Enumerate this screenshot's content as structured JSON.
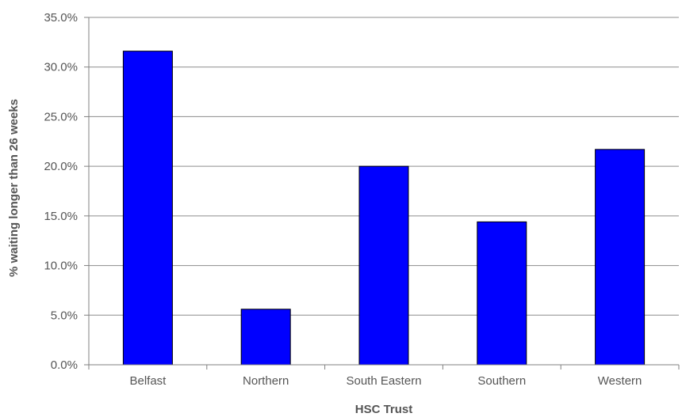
{
  "chart_data": {
    "type": "bar",
    "title": "",
    "xlabel": "HSC Trust",
    "ylabel": "% waiting longer than 26 weeks",
    "categories": [
      "Belfast",
      "Northern",
      "South Eastern",
      "Southern",
      "Western"
    ],
    "values": [
      31.6,
      5.6,
      20.0,
      14.4,
      21.7
    ],
    "ylim": [
      0,
      35
    ],
    "yticks": [
      0,
      5,
      10,
      15,
      20,
      25,
      30,
      35
    ],
    "ytick_labels": [
      "0.0%",
      "5.0%",
      "10.0%",
      "15.0%",
      "20.0%",
      "25.0%",
      "30.0%",
      "35.0%"
    ],
    "grid": true,
    "legend": "none",
    "colors": {
      "bar": "#0000ff",
      "bar_stroke": "#000000",
      "grid": "#8c8c8c",
      "axis": "#808080",
      "text": "#555555"
    }
  }
}
